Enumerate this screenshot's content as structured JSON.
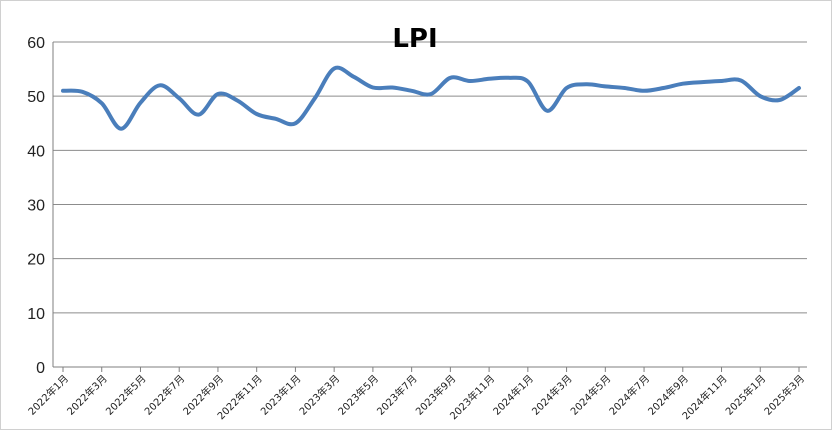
{
  "chart_data": {
    "type": "line",
    "title": "LPI",
    "xlabel": "",
    "ylabel": "",
    "ylim": [
      0,
      60
    ],
    "yticks": [
      0,
      10,
      20,
      30,
      40,
      50,
      60
    ],
    "grid": {
      "horizontal": true,
      "vertical": false
    },
    "line_color": "#4a7ebb",
    "x_tick_labels": [
      "2022年1月",
      "2022年3月",
      "2022年5月",
      "2022年7月",
      "2022年9月",
      "2022年11月",
      "2023年1月",
      "2023年3月",
      "2023年5月",
      "2023年7月",
      "2023年9月",
      "2023年11月",
      "2024年1月",
      "2024年3月",
      "2024年5月",
      "2024年7月",
      "2024年9月",
      "2024年11月",
      "2025年1月",
      "2025年3月"
    ],
    "x": [
      "2022年1月",
      "2022年2月",
      "2022年3月",
      "2022年4月",
      "2022年5月",
      "2022年6月",
      "2022年7月",
      "2022年8月",
      "2022年9月",
      "2022年10月",
      "2022年11月",
      "2022年12月",
      "2023年1月",
      "2023年2月",
      "2023年3月",
      "2023年4月",
      "2023年5月",
      "2023年6月",
      "2023年7月",
      "2023年8月",
      "2023年9月",
      "2023年10月",
      "2023年11月",
      "2023年12月",
      "2024年1月",
      "2024年2月",
      "2024年3月",
      "2024年4月",
      "2024年5月",
      "2024年6月",
      "2024年7月",
      "2024年8月",
      "2024年9月",
      "2024年10月",
      "2024年11月",
      "2024年12月",
      "2025年1月",
      "2025年2月",
      "2025年3月"
    ],
    "values": [
      51.0,
      50.8,
      48.7,
      44.0,
      48.8,
      52.0,
      49.6,
      46.6,
      50.4,
      49.2,
      46.7,
      45.8,
      45.0,
      49.6,
      55.1,
      53.6,
      51.6,
      51.6,
      51.0,
      50.4,
      53.4,
      52.8,
      53.2,
      53.4,
      52.7,
      47.3,
      51.5,
      52.2,
      51.8,
      51.5,
      51.0,
      51.5,
      52.3,
      52.6,
      52.8,
      52.9,
      50.0,
      49.3,
      51.5
    ]
  }
}
